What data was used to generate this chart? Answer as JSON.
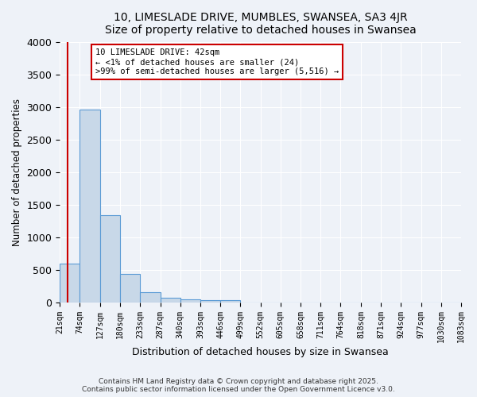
{
  "title": "10, LIMESLADE DRIVE, MUMBLES, SWANSEA, SA3 4JR",
  "subtitle": "Size of property relative to detached houses in Swansea",
  "xlabel": "Distribution of detached houses by size in Swansea",
  "ylabel": "Number of detached properties",
  "bar_values": [
    590,
    2960,
    1340,
    430,
    160,
    70,
    40,
    30,
    30,
    0,
    0,
    0,
    0,
    0,
    0,
    0,
    0,
    0,
    0,
    0
  ],
  "bin_labels": [
    "21sqm",
    "74sqm",
    "127sqm",
    "180sqm",
    "233sqm",
    "287sqm",
    "340sqm",
    "393sqm",
    "446sqm",
    "499sqm",
    "552sqm",
    "605sqm",
    "658sqm",
    "711sqm",
    "764sqm",
    "818sqm",
    "871sqm",
    "924sqm",
    "977sqm",
    "1030sqm",
    "1083sqm"
  ],
  "bin_edges": [
    21,
    74,
    127,
    180,
    233,
    287,
    340,
    393,
    446,
    499,
    552,
    605,
    658,
    711,
    764,
    818,
    871,
    924,
    977,
    1030,
    1083
  ],
  "bar_color": "#c8d8e8",
  "bar_edge_color": "#5b9bd5",
  "vline_x": 42,
  "vline_color": "#cc0000",
  "ylim": [
    0,
    4000
  ],
  "annotation_text": "10 LIMESLADE DRIVE: 42sqm\n← <1% of detached houses are smaller (24)\n>99% of semi-detached houses are larger (5,516) →",
  "annotation_box_color": "#ffffff",
  "annotation_box_edge": "#cc0000",
  "footer_line1": "Contains HM Land Registry data © Crown copyright and database right 2025.",
  "footer_line2": "Contains public sector information licensed under the Open Government Licence v3.0.",
  "background_color": "#eef2f8",
  "grid_color": "#ffffff"
}
